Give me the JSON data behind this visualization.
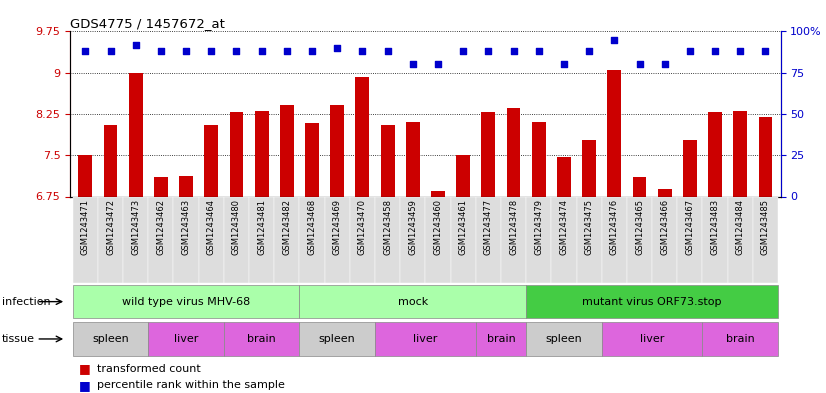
{
  "title": "GDS4775 / 1457672_at",
  "samples": [
    "GSM1243471",
    "GSM1243472",
    "GSM1243473",
    "GSM1243462",
    "GSM1243463",
    "GSM1243464",
    "GSM1243480",
    "GSM1243481",
    "GSM1243482",
    "GSM1243468",
    "GSM1243469",
    "GSM1243470",
    "GSM1243458",
    "GSM1243459",
    "GSM1243460",
    "GSM1243461",
    "GSM1243477",
    "GSM1243478",
    "GSM1243479",
    "GSM1243474",
    "GSM1243475",
    "GSM1243476",
    "GSM1243465",
    "GSM1243466",
    "GSM1243467",
    "GSM1243483",
    "GSM1243484",
    "GSM1243485"
  ],
  "bar_values": [
    7.5,
    8.05,
    9.0,
    7.1,
    7.12,
    8.05,
    8.28,
    8.3,
    8.42,
    8.08,
    8.42,
    8.92,
    8.05,
    8.1,
    6.85,
    7.5,
    8.28,
    8.35,
    8.1,
    7.47,
    7.78,
    9.05,
    7.1,
    6.88,
    7.78,
    8.28,
    8.3,
    8.2
  ],
  "percentile_values": [
    88,
    88,
    92,
    88,
    88,
    88,
    88,
    88,
    88,
    88,
    90,
    88,
    88,
    80,
    80,
    88,
    88,
    88,
    88,
    80,
    88,
    95,
    80,
    80,
    88,
    88,
    88,
    88
  ],
  "bar_color": "#cc0000",
  "dot_color": "#0000cc",
  "ylim_left": [
    6.75,
    9.75
  ],
  "ylim_right": [
    0,
    100
  ],
  "yticks_left": [
    6.75,
    7.5,
    8.25,
    9.0,
    9.75
  ],
  "yticks_right": [
    0,
    25,
    50,
    75,
    100
  ],
  "ytick_labels_left": [
    "6.75",
    "7.5",
    "8.25",
    "9",
    "9.75"
  ],
  "ytick_labels_right": [
    "0",
    "25",
    "50",
    "75",
    "100%"
  ],
  "infection_groups": [
    {
      "label": "wild type virus MHV-68",
      "start": 0,
      "end": 9,
      "color": "#aaffaa"
    },
    {
      "label": "mock",
      "start": 9,
      "end": 18,
      "color": "#aaffaa"
    },
    {
      "label": "mutant virus ORF73.stop",
      "start": 18,
      "end": 28,
      "color": "#44cc44"
    }
  ],
  "tissue_color_map": {
    "spleen": "#cccccc",
    "liver": "#dd66dd",
    "brain": "#dd66dd"
  },
  "tissue_groups": [
    {
      "label": "spleen",
      "start": 0,
      "end": 3
    },
    {
      "label": "liver",
      "start": 3,
      "end": 6
    },
    {
      "label": "brain",
      "start": 6,
      "end": 9
    },
    {
      "label": "spleen",
      "start": 9,
      "end": 12
    },
    {
      "label": "liver",
      "start": 12,
      "end": 16
    },
    {
      "label": "brain",
      "start": 16,
      "end": 18
    },
    {
      "label": "spleen",
      "start": 18,
      "end": 21
    },
    {
      "label": "liver",
      "start": 21,
      "end": 25
    },
    {
      "label": "brain",
      "start": 25,
      "end": 28
    }
  ],
  "background_color": "#ffffff",
  "axis_color_left": "#cc0000",
  "axis_color_right": "#0000cc",
  "xtick_bg_color": "#dddddd"
}
